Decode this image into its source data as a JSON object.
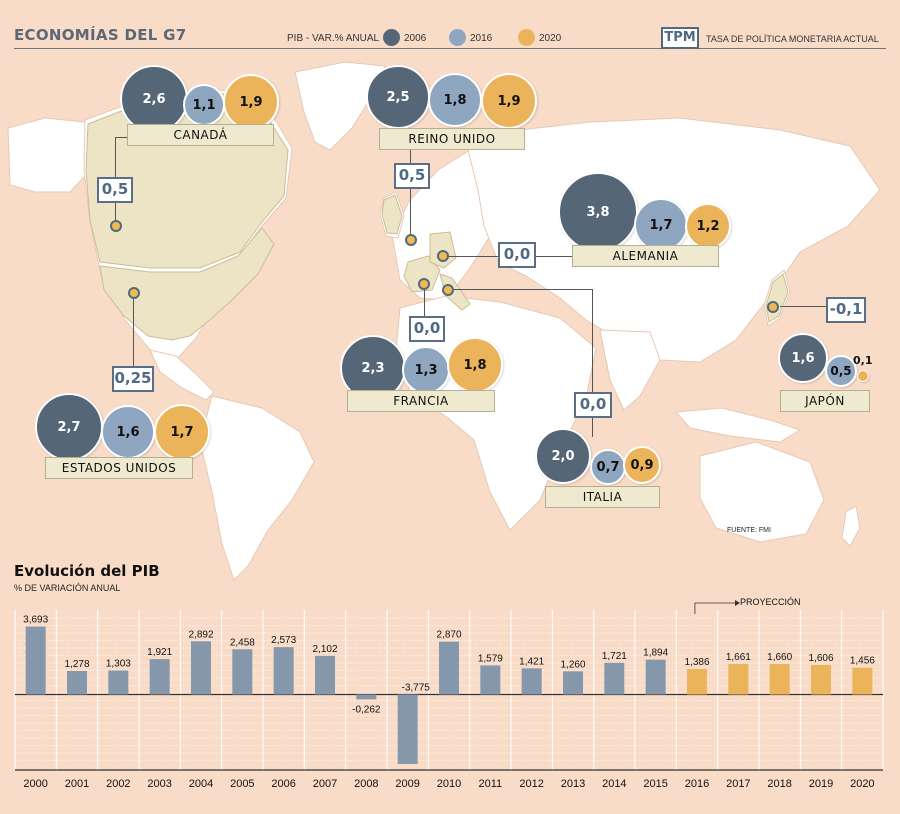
{
  "header": {
    "title": "ECONOMÍAS DEL G7",
    "legend_label": "PIB - VAR.% ANUAL",
    "legend_years": [
      "2006",
      "2016",
      "2020"
    ],
    "tpm_badge": "TPM",
    "tpm_description": "TASA DE POLÍTICA MONETARIA ACTUAL"
  },
  "colors": {
    "y2006": "#556677",
    "y2016": "#8fa6c0",
    "y2020": "#ecb45a",
    "bar_hist": "#8597ab",
    "bar_proj": "#ecb45a"
  },
  "countries": {
    "canada": {
      "name": "CANADÁ",
      "v2006": "2,6",
      "v2016": "1,1",
      "v2020": "1,9",
      "tpm": "0,5"
    },
    "reino_unido": {
      "name": "REINO UNIDO",
      "v2006": "2,5",
      "v2016": "1,8",
      "v2020": "1,9",
      "tpm": "0,5"
    },
    "alemania": {
      "name": "ALEMANIA",
      "v2006": "3,8",
      "v2016": "1,7",
      "v2020": "1,2",
      "tpm": "0,0"
    },
    "francia": {
      "name": "FRANCIA",
      "v2006": "2,3",
      "v2016": "1,3",
      "v2020": "1,8",
      "tpm": "0,0"
    },
    "italia": {
      "name": "ITALIA",
      "v2006": "2,0",
      "v2016": "0,7",
      "v2020": "0,9",
      "tpm": "0,0"
    },
    "japon": {
      "name": "JAPÓN",
      "v2006": "1,6",
      "v2016": "0,5",
      "v2020": "0,1",
      "tpm": "-0,1"
    },
    "estados_unidos": {
      "name": "ESTADOS UNIDOS",
      "v2006": "2,7",
      "v2016": "1,6",
      "v2020": "1,7",
      "tpm": "0,25"
    }
  },
  "source": "FUENTE: FMI",
  "chart_data": {
    "type": "bar",
    "title": "Evolución del PIB",
    "ylabel": "% DE VARIACIÓN ANUAL",
    "annotation": "PROYECCIÓN",
    "projection_start": "2016",
    "categories": [
      "2000",
      "2001",
      "2002",
      "2003",
      "2004",
      "2005",
      "2006",
      "2007",
      "2008",
      "2009",
      "2010",
      "2011",
      "2012",
      "2013",
      "2014",
      "2015",
      "2016",
      "2017",
      "2018",
      "2019",
      "2020"
    ],
    "values": [
      3.693,
      1.278,
      1.303,
      1.921,
      2.892,
      2.458,
      2.573,
      2.102,
      -0.262,
      -3.775,
      2.87,
      1.579,
      1.421,
      1.26,
      1.721,
      1.894,
      1.386,
      1.661,
      1.66,
      1.606,
      1.456
    ],
    "labels": [
      "3,693",
      "1,278",
      "1,303",
      "1,921",
      "2,892",
      "2,458",
      "2,573",
      "2,102",
      "-0,262",
      "-3,775",
      "2,870",
      "1,579",
      "1,421",
      "1,260",
      "1,721",
      "1,894",
      "1,386",
      "1,661",
      "1,660",
      "1,606",
      "1,456"
    ],
    "ylim": [
      -4,
      4
    ]
  }
}
